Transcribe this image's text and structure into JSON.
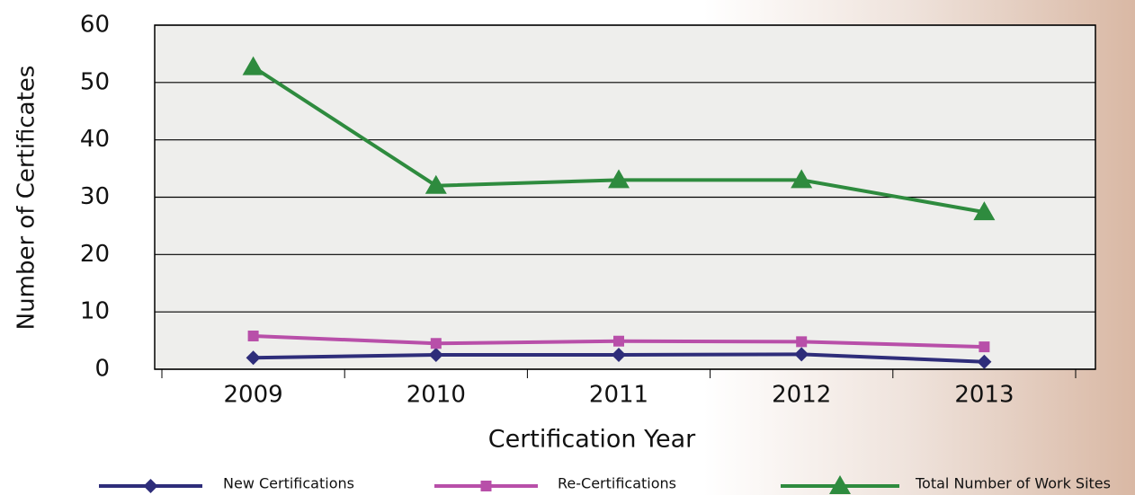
{
  "chart_data": {
    "type": "line",
    "x_label": "Certification Year",
    "y_label": "Number of Certificates",
    "categories": [
      "2009",
      "2010",
      "2011",
      "2012",
      "2013"
    ],
    "series": [
      {
        "name": "New Certifications",
        "color": "#2e2d7a",
        "marker": "diamond",
        "values": [
          2.0,
          2.5,
          2.5,
          2.6,
          1.3
        ]
      },
      {
        "name": "Re-Certifications",
        "color": "#b84fa9",
        "marker": "square",
        "values": [
          5.8,
          4.5,
          4.9,
          4.8,
          3.9
        ]
      },
      {
        "name": "Total Number of Work Sites",
        "color": "#2e8b3e",
        "marker": "triangle",
        "values": [
          52.7,
          32.0,
          33.0,
          33.0,
          27.4
        ]
      }
    ],
    "ylim": [
      0,
      60
    ],
    "yticks": [
      0,
      10,
      20,
      30,
      40,
      50,
      60
    ],
    "grid": true
  }
}
